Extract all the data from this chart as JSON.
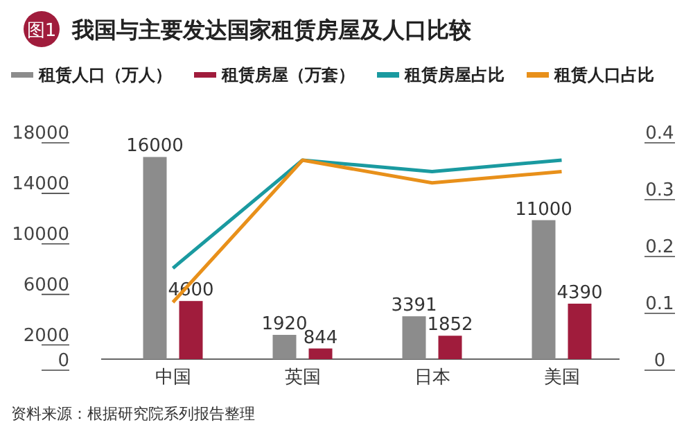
{
  "chart_data": {
    "type": "bar",
    "title": "我国与主要发达国家租赁房屋及人口比较",
    "categories": [
      "中国",
      "英国",
      "日本",
      "美国"
    ],
    "series": [
      {
        "name": "租赁人口（万人）",
        "color": "#8c8c8c",
        "values": [
          16000,
          1920,
          3391,
          11000
        ],
        "value_labels": [
          "16000",
          "1920",
          "3391",
          "11000"
        ]
      },
      {
        "name": "租赁房屋（万套）",
        "color": "#a01c3c",
        "values": [
          4600,
          844,
          1852,
          4390
        ],
        "value_labels": [
          "4600",
          "844",
          "1852",
          "4390"
        ]
      },
      {
        "name": "租赁房屋占比",
        "type": "line",
        "axis": "y2",
        "color": "#1a9aa0",
        "values": [
          0.16,
          0.35,
          0.33,
          0.35
        ]
      },
      {
        "name": "租赁人口占比",
        "type": "line",
        "axis": "y2",
        "color": "#e8901a",
        "values": [
          0.1,
          0.35,
          0.31,
          0.33
        ]
      }
    ],
    "ylim": [
      0,
      18000
    ],
    "yticks": [
      0,
      2000,
      6000,
      10000,
      14000,
      18000
    ],
    "y2lim": [
      0,
      0.4
    ],
    "y2ticks": [
      0,
      0.1,
      0.2,
      0.3,
      0.4
    ],
    "legend": "top",
    "annotations": [
      "图1",
      "资料来源：根据研究院系列报告整理"
    ]
  }
}
